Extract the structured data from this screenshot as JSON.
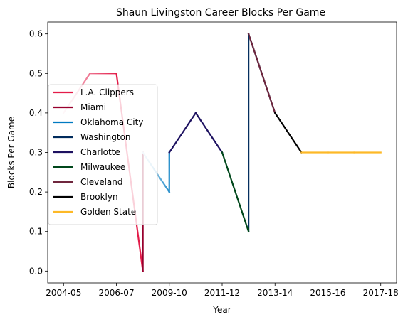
{
  "chart_data": {
    "type": "line",
    "title": "Shaun Livingston Career Blocks Per Game",
    "xlabel": "Year",
    "ylabel": "Blocks Per Game",
    "x_ticks": [
      "2004-05",
      "2006-07",
      "2009-10",
      "2011-12",
      "2013-14",
      "2015-16",
      "2017-18"
    ],
    "x_tick_positions": [
      0,
      2,
      4,
      6,
      8,
      10,
      12
    ],
    "xlim": [
      -0.6,
      12.6
    ],
    "y_ticks": [
      "0.0",
      "0.1",
      "0.2",
      "0.3",
      "0.4",
      "0.5",
      "0.6"
    ],
    "y_tick_values": [
      0.0,
      0.1,
      0.2,
      0.3,
      0.4,
      0.5,
      0.6
    ],
    "ylim": [
      -0.03,
      0.63
    ],
    "grid": false,
    "legend_position": "center-left",
    "series": [
      {
        "name": "L.A. Clippers",
        "color": "#e31c49",
        "x": [
          0,
          1,
          2,
          3
        ],
        "y": [
          0.4,
          0.5,
          0.5,
          0.0
        ],
        "gradient_from": "#fbd5de"
      },
      {
        "name": "Miami",
        "color": "#98002e",
        "x": [
          3,
          3
        ],
        "y": [
          0.0,
          0.3
        ]
      },
      {
        "name": "Oklahoma City",
        "color": "#007ac1",
        "x": [
          3,
          4,
          4
        ],
        "y": [
          0.3,
          0.2,
          0.3
        ],
        "gradient_from": "#c9e4f2"
      },
      {
        "name": "Washington",
        "color": "#002b5c",
        "x": [
          7,
          7,
          8
        ],
        "y": [
          0.1,
          0.6,
          0.4
        ]
      },
      {
        "name": "Charlotte",
        "color": "#1d1160",
        "x": [
          4,
          5,
          6
        ],
        "y": [
          0.3,
          0.4,
          0.3
        ]
      },
      {
        "name": "Milwaukee",
        "color": "#00471b",
        "x": [
          6,
          7
        ],
        "y": [
          0.3,
          0.1
        ]
      },
      {
        "name": "Cleveland",
        "color": "#6f263d",
        "x": [
          7,
          8
        ],
        "y": [
          0.6,
          0.4
        ]
      },
      {
        "name": "Brooklyn",
        "color": "#000000",
        "x": [
          8,
          9
        ],
        "y": [
          0.4,
          0.3
        ]
      },
      {
        "name": "Golden State",
        "color": "#fdb927",
        "x": [
          9,
          10,
          11,
          12
        ],
        "y": [
          0.3,
          0.3,
          0.3,
          0.3
        ]
      }
    ]
  }
}
